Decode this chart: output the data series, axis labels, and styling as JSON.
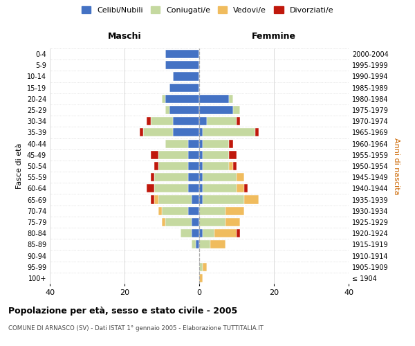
{
  "age_groups": [
    "100+",
    "95-99",
    "90-94",
    "85-89",
    "80-84",
    "75-79",
    "70-74",
    "65-69",
    "60-64",
    "55-59",
    "50-54",
    "45-49",
    "40-44",
    "35-39",
    "30-34",
    "25-29",
    "20-24",
    "15-19",
    "10-14",
    "5-9",
    "0-4"
  ],
  "birth_years": [
    "≤ 1904",
    "1905-1909",
    "1910-1914",
    "1915-1919",
    "1920-1924",
    "1925-1929",
    "1930-1934",
    "1935-1939",
    "1940-1944",
    "1945-1949",
    "1950-1954",
    "1955-1959",
    "1960-1964",
    "1965-1969",
    "1970-1974",
    "1975-1979",
    "1980-1984",
    "1985-1989",
    "1990-1994",
    "1995-1999",
    "2000-2004"
  ],
  "colors": {
    "celibe": "#4472C4",
    "coniugato": "#c5d9a0",
    "vedovo": "#f0bc5e",
    "divorziato": "#c0180c"
  },
  "maschi": {
    "celibe": [
      0,
      0,
      0,
      1,
      2,
      2,
      3,
      2,
      3,
      3,
      3,
      3,
      3,
      7,
      7,
      8,
      9,
      8,
      7,
      9,
      9
    ],
    "coniugato": [
      0,
      0,
      0,
      1,
      3,
      7,
      7,
      9,
      9,
      9,
      8,
      8,
      6,
      8,
      6,
      1,
      1,
      0,
      0,
      0,
      0
    ],
    "vedovo": [
      0,
      0,
      0,
      0,
      0,
      1,
      1,
      1,
      0,
      0,
      0,
      0,
      0,
      0,
      0,
      0,
      0,
      0,
      0,
      0,
      0
    ],
    "divorziato": [
      0,
      0,
      0,
      0,
      0,
      0,
      0,
      1,
      2,
      1,
      1,
      2,
      0,
      1,
      1,
      0,
      0,
      0,
      0,
      0,
      0
    ]
  },
  "femmine": {
    "celibe": [
      0,
      0,
      0,
      0,
      1,
      0,
      0,
      1,
      1,
      1,
      1,
      1,
      1,
      1,
      2,
      9,
      8,
      0,
      0,
      0,
      0
    ],
    "coniugato": [
      0,
      1,
      0,
      3,
      3,
      7,
      7,
      11,
      9,
      9,
      7,
      7,
      7,
      14,
      8,
      2,
      1,
      0,
      0,
      0,
      0
    ],
    "vedovo": [
      1,
      1,
      0,
      4,
      6,
      4,
      5,
      4,
      2,
      2,
      1,
      0,
      0,
      0,
      0,
      0,
      0,
      0,
      0,
      0,
      0
    ],
    "divorziato": [
      0,
      0,
      0,
      0,
      1,
      0,
      0,
      0,
      1,
      0,
      1,
      2,
      1,
      1,
      1,
      0,
      0,
      0,
      0,
      0,
      0
    ]
  },
  "xlim": 40,
  "title": "Popolazione per età, sesso e stato civile - 2005",
  "subtitle": "COMUNE DI ARNASCO (SV) - Dati ISTAT 1° gennaio 2005 - Elaborazione TUTTITALIA.IT",
  "ylabel_left": "Fasce di età",
  "ylabel_right": "Anni di nascita",
  "xlabel_maschi": "Maschi",
  "xlabel_femmine": "Femmine",
  "legend_labels": [
    "Celibi/Nubili",
    "Coniugati/e",
    "Vedovi/e",
    "Divorziati/e"
  ],
  "bg_color": "#ffffff",
  "grid_color": "#cccccc"
}
